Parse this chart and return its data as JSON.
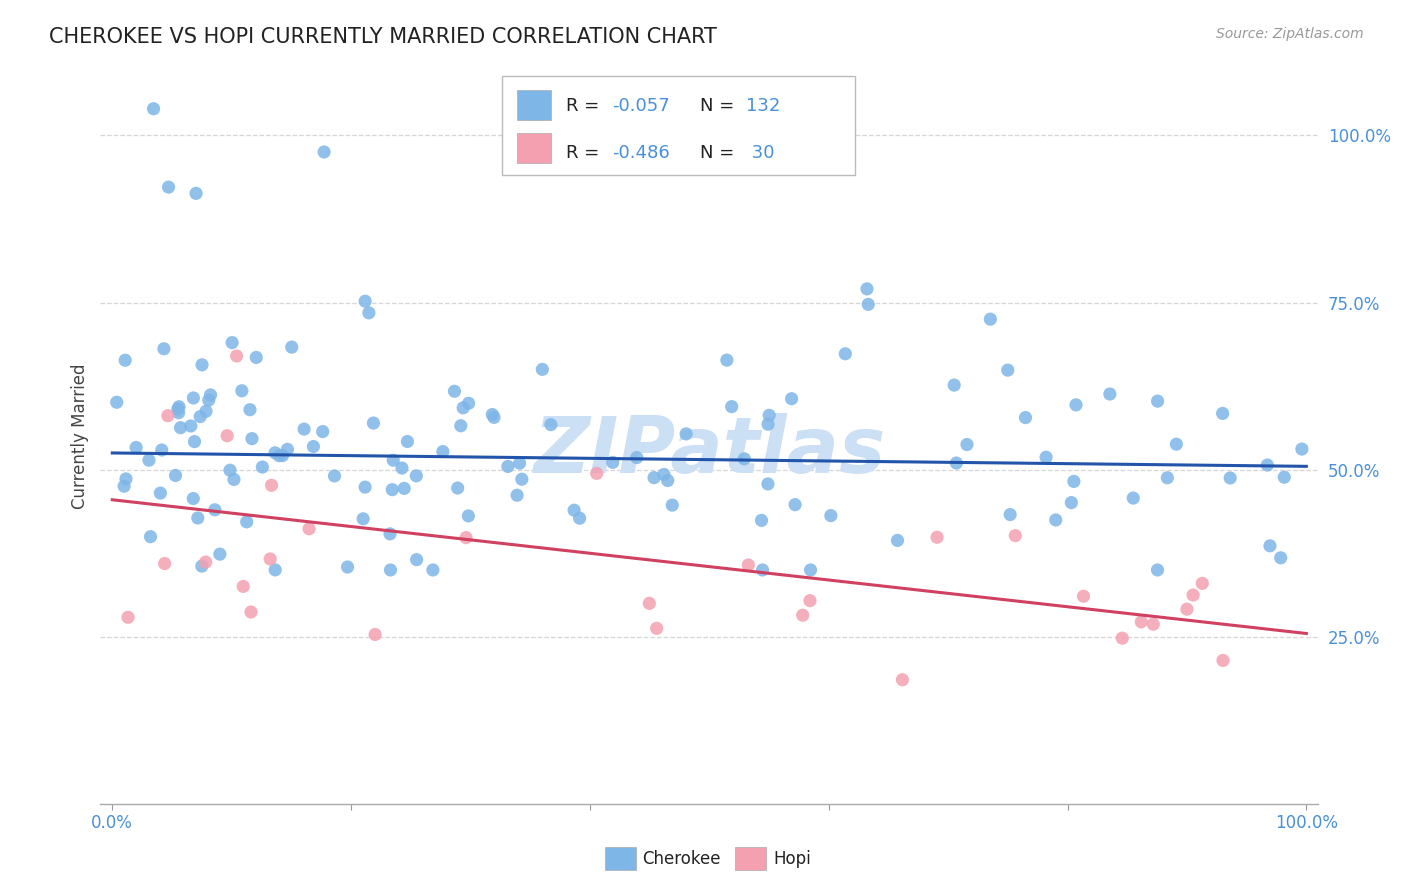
{
  "title": "CHEROKEE VS HOPI CURRENTLY MARRIED CORRELATION CHART",
  "source": "Source: ZipAtlas.com",
  "ylabel": "Currently Married",
  "cherokee_R": -0.057,
  "cherokee_N": 132,
  "hopi_R": -0.486,
  "hopi_N": 30,
  "cherokee_color": "#7eb6e8",
  "cherokee_line_color": "#2255aa",
  "hopi_color": "#f4a0b0",
  "hopi_line_color": "#d04060",
  "background_color": "#ffffff",
  "grid_color": "#cccccc",
  "axis_label_color": "#4a90d9",
  "title_fontsize": 15,
  "label_fontsize": 12,
  "watermark_text": "ZIPatlas",
  "watermark_color": "#cce0f5",
  "ytick_labels": [
    "25.0%",
    "50.0%",
    "75.0%",
    "100.0%"
  ],
  "ytick_values": [
    0.25,
    0.5,
    0.75,
    1.0
  ],
  "xlim": [
    0.0,
    1.0
  ],
  "ylim": [
    0.0,
    1.1
  ],
  "cherokee_line_y0": 0.525,
  "cherokee_line_y1": 0.505,
  "hopi_line_y0": 0.455,
  "hopi_line_y1": 0.255
}
